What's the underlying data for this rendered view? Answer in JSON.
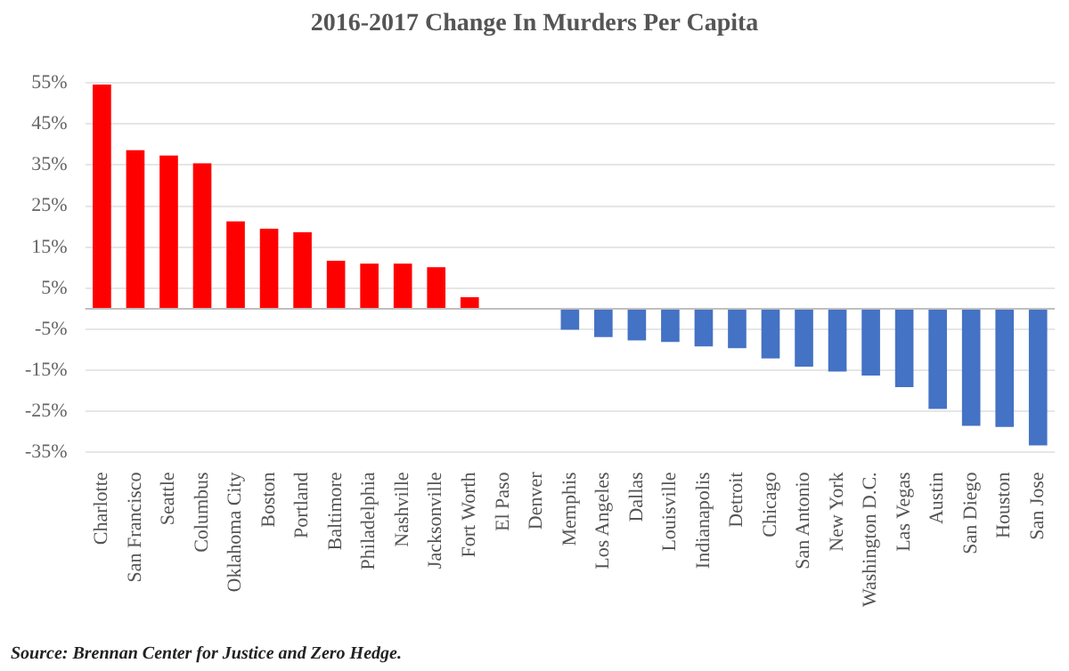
{
  "chart_data": {
    "type": "bar",
    "title": "2016-2017 Change In Murders Per Capita",
    "categories": [
      "Charlotte",
      "San Francisco",
      "Seattle",
      "Columbus",
      "Oklahoma City",
      "Boston",
      "Portland",
      "Baltimore",
      "Philadelphia",
      "Nashville",
      "Jacksonville",
      "Fort Worth",
      "El Paso",
      "Denver",
      "Memphis",
      "Los Angeles",
      "Dallas",
      "Louisville",
      "Indianapolis",
      "Detroit",
      "Chicago",
      "San Antonio",
      "New York",
      "Washington D.C.",
      "Las Vegas",
      "Austin",
      "San Diego",
      "Houston",
      "San Jose"
    ],
    "values": [
      54.6,
      38.6,
      37.3,
      35.4,
      21.3,
      19.5,
      18.6,
      11.7,
      11.0,
      11.0,
      10.1,
      2.8,
      0,
      0,
      -5.1,
      -6.9,
      -7.7,
      -8.1,
      -9.2,
      -9.6,
      -12.1,
      -14.1,
      -15.3,
      -16.3,
      -19.1,
      -24.4,
      -28.5,
      -28.8,
      -33.3
    ],
    "colors": [
      "#ff0000",
      "#ff0000",
      "#ff0000",
      "#ff0000",
      "#ff0000",
      "#ff0000",
      "#ff0000",
      "#ff0000",
      "#ff0000",
      "#ff0000",
      "#ff0000",
      "#ff0000",
      "#ff0000",
      "#ff0000",
      "#4472c4",
      "#4472c4",
      "#4472c4",
      "#4472c4",
      "#4472c4",
      "#4472c4",
      "#4472c4",
      "#4472c4",
      "#4472c4",
      "#4472c4",
      "#4472c4",
      "#4472c4",
      "#4472c4",
      "#4472c4",
      "#4472c4"
    ],
    "ylim": [
      -35,
      55
    ],
    "yticks": [
      {
        "value": 55,
        "label": "55%"
      },
      {
        "value": 45,
        "label": "45%"
      },
      {
        "value": 35,
        "label": "35%"
      },
      {
        "value": 25,
        "label": "25%"
      },
      {
        "value": 15,
        "label": "15%"
      },
      {
        "value": 5,
        "label": "5%"
      },
      {
        "value": -5,
        "label": "-5%"
      },
      {
        "value": -15,
        "label": "-15%"
      },
      {
        "value": -25,
        "label": "-25%"
      },
      {
        "value": -35,
        "label": "-35%"
      }
    ],
    "grid": "y",
    "legend": false,
    "annotations": [
      "Source:  Brennan Center for Justice and Zero Hedge."
    ]
  }
}
